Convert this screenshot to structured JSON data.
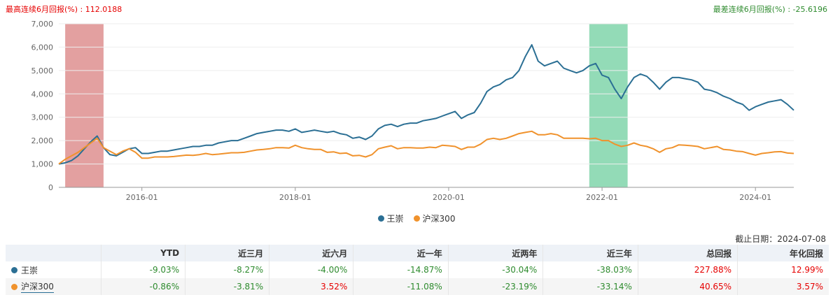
{
  "header": {
    "max_label": "最高连续6月回报(%) : 112.0188",
    "min_label": "最差连续6月回报(%) : -25.6196"
  },
  "colors": {
    "series1": "#2b6f94",
    "series2": "#f0922c",
    "max_band": "#d98080",
    "min_band": "#6fcf9f",
    "positive": "#e60000",
    "negative": "#2e8b2e"
  },
  "chart_data": {
    "type": "line",
    "ylim": [
      0,
      7000
    ],
    "y_ticks": [
      "0",
      "1,000",
      "2,000",
      "3,000",
      "4,000",
      "5,000",
      "6,000",
      "7,000"
    ],
    "x_range": [
      "2014-12",
      "2024-07"
    ],
    "x_ticks": [
      {
        "date": "2016-01",
        "label": "2016-01"
      },
      {
        "date": "2018-01",
        "label": "2018-01"
      },
      {
        "date": "2020-01",
        "label": "2020-01"
      },
      {
        "date": "2022-01",
        "label": "2022-01"
      },
      {
        "date": "2024-01",
        "label": "2024-01"
      }
    ],
    "bands": [
      {
        "start": "2015-01",
        "end": "2015-07",
        "kind": "max"
      },
      {
        "start": "2021-11",
        "end": "2022-05",
        "kind": "min"
      }
    ],
    "series": [
      {
        "name": "王崇",
        "points": [
          [
            "2014-12",
            1000
          ],
          [
            "2015-01",
            1050
          ],
          [
            "2015-02",
            1150
          ],
          [
            "2015-03",
            1350
          ],
          [
            "2015-04",
            1650
          ],
          [
            "2015-05",
            1950
          ],
          [
            "2015-06",
            2200
          ],
          [
            "2015-07",
            1700
          ],
          [
            "2015-08",
            1400
          ],
          [
            "2015-09",
            1350
          ],
          [
            "2015-10",
            1500
          ],
          [
            "2015-11",
            1650
          ],
          [
            "2015-12",
            1700
          ],
          [
            "2016-01",
            1450
          ],
          [
            "2016-02",
            1450
          ],
          [
            "2016-03",
            1500
          ],
          [
            "2016-04",
            1550
          ],
          [
            "2016-05",
            1550
          ],
          [
            "2016-06",
            1600
          ],
          [
            "2016-07",
            1650
          ],
          [
            "2016-08",
            1700
          ],
          [
            "2016-09",
            1750
          ],
          [
            "2016-10",
            1750
          ],
          [
            "2016-11",
            1800
          ],
          [
            "2016-12",
            1800
          ],
          [
            "2017-01",
            1900
          ],
          [
            "2017-02",
            1950
          ],
          [
            "2017-03",
            2000
          ],
          [
            "2017-04",
            2000
          ],
          [
            "2017-05",
            2100
          ],
          [
            "2017-06",
            2200
          ],
          [
            "2017-07",
            2300
          ],
          [
            "2017-08",
            2350
          ],
          [
            "2017-09",
            2400
          ],
          [
            "2017-10",
            2450
          ],
          [
            "2017-11",
            2450
          ],
          [
            "2017-12",
            2400
          ],
          [
            "2018-01",
            2500
          ],
          [
            "2018-02",
            2350
          ],
          [
            "2018-03",
            2400
          ],
          [
            "2018-04",
            2450
          ],
          [
            "2018-05",
            2400
          ],
          [
            "2018-06",
            2350
          ],
          [
            "2018-07",
            2400
          ],
          [
            "2018-08",
            2300
          ],
          [
            "2018-09",
            2250
          ],
          [
            "2018-10",
            2100
          ],
          [
            "2018-11",
            2150
          ],
          [
            "2018-12",
            2050
          ],
          [
            "2019-01",
            2200
          ],
          [
            "2019-02",
            2500
          ],
          [
            "2019-03",
            2650
          ],
          [
            "2019-04",
            2700
          ],
          [
            "2019-05",
            2600
          ],
          [
            "2019-06",
            2700
          ],
          [
            "2019-07",
            2750
          ],
          [
            "2019-08",
            2750
          ],
          [
            "2019-09",
            2850
          ],
          [
            "2019-10",
            2900
          ],
          [
            "2019-11",
            2950
          ],
          [
            "2019-12",
            3050
          ],
          [
            "2020-01",
            3150
          ],
          [
            "2020-02",
            3250
          ],
          [
            "2020-03",
            2950
          ],
          [
            "2020-04",
            3100
          ],
          [
            "2020-05",
            3200
          ],
          [
            "2020-06",
            3600
          ],
          [
            "2020-07",
            4100
          ],
          [
            "2020-08",
            4300
          ],
          [
            "2020-09",
            4400
          ],
          [
            "2020-10",
            4600
          ],
          [
            "2020-11",
            4700
          ],
          [
            "2020-12",
            5000
          ],
          [
            "2021-01",
            5600
          ],
          [
            "2021-02",
            6100
          ],
          [
            "2021-03",
            5400
          ],
          [
            "2021-04",
            5200
          ],
          [
            "2021-05",
            5300
          ],
          [
            "2021-06",
            5400
          ],
          [
            "2021-07",
            5100
          ],
          [
            "2021-08",
            5000
          ],
          [
            "2021-09",
            4900
          ],
          [
            "2021-10",
            5000
          ],
          [
            "2021-11",
            5200
          ],
          [
            "2021-12",
            5300
          ],
          [
            "2022-01",
            4800
          ],
          [
            "2022-02",
            4700
          ],
          [
            "2022-03",
            4200
          ],
          [
            "2022-04",
            3800
          ],
          [
            "2022-05",
            4300
          ],
          [
            "2022-06",
            4700
          ],
          [
            "2022-07",
            4850
          ],
          [
            "2022-08",
            4750
          ],
          [
            "2022-09",
            4500
          ],
          [
            "2022-10",
            4200
          ],
          [
            "2022-11",
            4500
          ],
          [
            "2022-12",
            4700
          ],
          [
            "2023-01",
            4700
          ],
          [
            "2023-02",
            4650
          ],
          [
            "2023-03",
            4600
          ],
          [
            "2023-04",
            4500
          ],
          [
            "2023-05",
            4200
          ],
          [
            "2023-06",
            4150
          ],
          [
            "2023-07",
            4050
          ],
          [
            "2023-08",
            3900
          ],
          [
            "2023-09",
            3800
          ],
          [
            "2023-10",
            3650
          ],
          [
            "2023-11",
            3550
          ],
          [
            "2023-12",
            3300
          ],
          [
            "2024-01",
            3450
          ],
          [
            "2024-02",
            3550
          ],
          [
            "2024-03",
            3650
          ],
          [
            "2024-04",
            3700
          ],
          [
            "2024-05",
            3750
          ],
          [
            "2024-06",
            3550
          ],
          [
            "2024-07",
            3300
          ]
        ]
      },
      {
        "name": "沪深300",
        "points": [
          [
            "2014-12",
            1000
          ],
          [
            "2015-01",
            1200
          ],
          [
            "2015-02",
            1350
          ],
          [
            "2015-03",
            1500
          ],
          [
            "2015-04",
            1700
          ],
          [
            "2015-05",
            1900
          ],
          [
            "2015-06",
            2100
          ],
          [
            "2015-07",
            1700
          ],
          [
            "2015-08",
            1550
          ],
          [
            "2015-09",
            1400
          ],
          [
            "2015-10",
            1550
          ],
          [
            "2015-11",
            1650
          ],
          [
            "2015-12",
            1500
          ],
          [
            "2016-01",
            1250
          ],
          [
            "2016-02",
            1250
          ],
          [
            "2016-03",
            1300
          ],
          [
            "2016-04",
            1300
          ],
          [
            "2016-05",
            1300
          ],
          [
            "2016-06",
            1320
          ],
          [
            "2016-07",
            1350
          ],
          [
            "2016-08",
            1380
          ],
          [
            "2016-09",
            1370
          ],
          [
            "2016-10",
            1400
          ],
          [
            "2016-11",
            1450
          ],
          [
            "2016-12",
            1400
          ],
          [
            "2017-01",
            1420
          ],
          [
            "2017-02",
            1450
          ],
          [
            "2017-03",
            1480
          ],
          [
            "2017-04",
            1480
          ],
          [
            "2017-05",
            1500
          ],
          [
            "2017-06",
            1550
          ],
          [
            "2017-07",
            1600
          ],
          [
            "2017-08",
            1620
          ],
          [
            "2017-09",
            1650
          ],
          [
            "2017-10",
            1700
          ],
          [
            "2017-11",
            1700
          ],
          [
            "2017-12",
            1680
          ],
          [
            "2018-01",
            1800
          ],
          [
            "2018-02",
            1700
          ],
          [
            "2018-03",
            1650
          ],
          [
            "2018-04",
            1620
          ],
          [
            "2018-05",
            1620
          ],
          [
            "2018-06",
            1500
          ],
          [
            "2018-07",
            1520
          ],
          [
            "2018-08",
            1450
          ],
          [
            "2018-09",
            1470
          ],
          [
            "2018-10",
            1350
          ],
          [
            "2018-11",
            1370
          ],
          [
            "2018-12",
            1300
          ],
          [
            "2019-01",
            1400
          ],
          [
            "2019-02",
            1650
          ],
          [
            "2019-03",
            1720
          ],
          [
            "2019-04",
            1780
          ],
          [
            "2019-05",
            1650
          ],
          [
            "2019-06",
            1700
          ],
          [
            "2019-07",
            1700
          ],
          [
            "2019-08",
            1680
          ],
          [
            "2019-09",
            1680
          ],
          [
            "2019-10",
            1720
          ],
          [
            "2019-11",
            1700
          ],
          [
            "2019-12",
            1800
          ],
          [
            "2020-01",
            1780
          ],
          [
            "2020-02",
            1750
          ],
          [
            "2020-03",
            1620
          ],
          [
            "2020-04",
            1720
          ],
          [
            "2020-05",
            1720
          ],
          [
            "2020-06",
            1850
          ],
          [
            "2020-07",
            2050
          ],
          [
            "2020-08",
            2100
          ],
          [
            "2020-09",
            2050
          ],
          [
            "2020-10",
            2100
          ],
          [
            "2020-11",
            2200
          ],
          [
            "2020-12",
            2300
          ],
          [
            "2021-01",
            2350
          ],
          [
            "2021-02",
            2400
          ],
          [
            "2021-03",
            2250
          ],
          [
            "2021-04",
            2250
          ],
          [
            "2021-05",
            2300
          ],
          [
            "2021-06",
            2250
          ],
          [
            "2021-07",
            2100
          ],
          [
            "2021-08",
            2100
          ],
          [
            "2021-09",
            2100
          ],
          [
            "2021-10",
            2100
          ],
          [
            "2021-11",
            2080
          ],
          [
            "2021-12",
            2100
          ],
          [
            "2022-01",
            2000
          ],
          [
            "2022-02",
            2000
          ],
          [
            "2022-03",
            1850
          ],
          [
            "2022-04",
            1750
          ],
          [
            "2022-05",
            1800
          ],
          [
            "2022-06",
            1900
          ],
          [
            "2022-07",
            1800
          ],
          [
            "2022-08",
            1750
          ],
          [
            "2022-09",
            1650
          ],
          [
            "2022-10",
            1500
          ],
          [
            "2022-11",
            1650
          ],
          [
            "2022-12",
            1700
          ],
          [
            "2023-01",
            1820
          ],
          [
            "2023-02",
            1800
          ],
          [
            "2023-03",
            1780
          ],
          [
            "2023-04",
            1750
          ],
          [
            "2023-05",
            1650
          ],
          [
            "2023-06",
            1700
          ],
          [
            "2023-07",
            1750
          ],
          [
            "2023-08",
            1620
          ],
          [
            "2023-09",
            1600
          ],
          [
            "2023-10",
            1550
          ],
          [
            "2023-11",
            1530
          ],
          [
            "2023-12",
            1450
          ],
          [
            "2024-01",
            1380
          ],
          [
            "2024-02",
            1450
          ],
          [
            "2024-03",
            1480
          ],
          [
            "2024-04",
            1520
          ],
          [
            "2024-05",
            1530
          ],
          [
            "2024-06",
            1470
          ],
          [
            "2024-07",
            1450
          ]
        ]
      }
    ]
  },
  "legend": [
    {
      "label": "王崇"
    },
    {
      "label": "沪深300"
    }
  ],
  "cutoff": "截止日期：2024-07-08",
  "table": {
    "headers": [
      "",
      "YTD",
      "近三月",
      "近六月",
      "近一年",
      "近两年",
      "近三年",
      "总回报",
      "年化回报"
    ],
    "rows": [
      {
        "name": "王崇",
        "values": [
          "-9.03%",
          "-8.27%",
          "-4.00%",
          "-14.87%",
          "-30.04%",
          "-38.03%",
          "227.88%",
          "12.99%"
        ],
        "signs": [
          "neg",
          "neg",
          "neg",
          "neg",
          "neg",
          "neg",
          "pos",
          "pos"
        ]
      },
      {
        "name": "沪深300",
        "values": [
          "-0.86%",
          "-3.81%",
          "3.52%",
          "-11.08%",
          "-23.19%",
          "-33.14%",
          "40.65%",
          "3.57%"
        ],
        "signs": [
          "neg",
          "neg",
          "pos",
          "neg",
          "neg",
          "neg",
          "pos",
          "pos"
        ]
      }
    ]
  }
}
